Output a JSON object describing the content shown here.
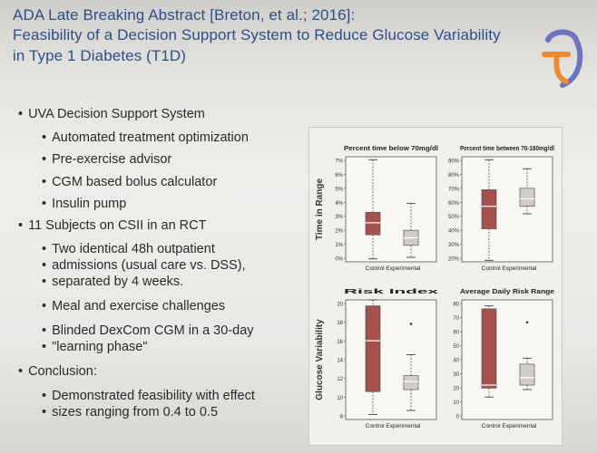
{
  "title": {
    "line1": "ADA Late Breaking Abstract [Breton, et al.; 2016]:",
    "line2": "Feasibility of a Decision Support System to Reduce Glucose Variability",
    "line3": "in Type 1 Diabetes (T1D)"
  },
  "bullets": [
    {
      "level": 1,
      "text": "UVA Decision Support System"
    },
    {
      "level": 2,
      "text": "Automated treatment optimization"
    },
    {
      "level": 2,
      "text": "Pre-exercise advisor"
    },
    {
      "level": 2,
      "text": "CGM based bolus calculator"
    },
    {
      "level": 2,
      "text": "Insulin pump"
    },
    {
      "level": 1,
      "text": "11 Subjects on CSII in an RCT"
    },
    {
      "level": 2,
      "text": "Two identical 48h outpatient"
    },
    {
      "level": 2,
      "text": "admissions (usual care vs. DSS),"
    },
    {
      "level": 2,
      "text": "separated by 4 weeks."
    },
    {
      "level": 2,
      "text": "Meal and exercise challenges"
    },
    {
      "level": 2,
      "text": "Blinded DexCom CGM in a 30-day"
    },
    {
      "level": 2,
      "text": "\"learning phase\""
    },
    {
      "level": 1,
      "text": "Conclusion:"
    },
    {
      "level": 2,
      "text": "Demonstrated feasibility with effect"
    },
    {
      "level": 2,
      "text": "sizes ranging from 0.4 to 0.5"
    }
  ],
  "colors": {
    "title": "#2d4f87",
    "control_box": "#a6524c",
    "experimental_box": "#d2cdc9",
    "logo_orange": "#f08a2e",
    "logo_purple": "#6c74c0"
  },
  "chart_data": [
    {
      "type": "box",
      "title": "Percent time below 70mg/dl",
      "row_label": "Time in Range",
      "categories": [
        "Control",
        "Experimental"
      ],
      "y_ticks": [
        "7%",
        "6%",
        "5%",
        "4%",
        "3%",
        "2%",
        "1%",
        "0%"
      ],
      "ylim": [
        0,
        7
      ],
      "series": [
        {
          "name": "Control",
          "min": 0.2,
          "q1": 1.8,
          "median": 2.6,
          "q3": 3.3,
          "max": 6.8
        },
        {
          "name": "Experimental",
          "min": 0.3,
          "q1": 1.1,
          "median": 1.6,
          "q3": 2.1,
          "max": 3.9
        }
      ]
    },
    {
      "type": "box",
      "title": "Percent time between 70-180mg/dl",
      "row_label": "Time in Range",
      "categories": [
        "Control",
        "Experimental"
      ],
      "y_ticks": [
        "90%",
        "80%",
        "70%",
        "60%",
        "50%",
        "40%",
        "30%",
        "20%"
      ],
      "ylim": [
        20,
        90
      ],
      "series": [
        {
          "name": "Control",
          "min": 21,
          "q1": 42,
          "median": 57,
          "q3": 68,
          "max": 88
        },
        {
          "name": "Experimental",
          "min": 52,
          "q1": 57,
          "median": 62,
          "q3": 69,
          "max": 82
        }
      ]
    },
    {
      "type": "box",
      "title": "Risk Index",
      "row_label": "Glucose Variability",
      "categories": [
        "Control",
        "Experimental"
      ],
      "y_ticks": [
        "20",
        "18",
        "16",
        "14",
        "12",
        "10",
        "8"
      ],
      "ylim": [
        8,
        20
      ],
      "series": [
        {
          "name": "Control",
          "min": 8.5,
          "q1": 10.8,
          "median": 15.9,
          "q3": 19.4,
          "max": 20
        },
        {
          "name": "Experimental",
          "min": 8.9,
          "q1": 11.0,
          "median": 11.8,
          "q3": 12.4,
          "max": 14.5,
          "outliers": [
            17.6
          ]
        }
      ]
    },
    {
      "type": "box",
      "title": "Average Daily Risk Range",
      "row_label": "Glucose Variability",
      "categories": [
        "Control",
        "Experimental"
      ],
      "y_ticks": [
        "80",
        "70",
        "60",
        "50",
        "40",
        "30",
        "20",
        "10",
        "0"
      ],
      "ylim": [
        0,
        80
      ],
      "series": [
        {
          "name": "Control",
          "min": 15,
          "q1": 21,
          "median": 23,
          "q3": 74,
          "max": 76
        },
        {
          "name": "Experimental",
          "min": 20,
          "q1": 23,
          "median": 28,
          "q3": 37,
          "max": 41,
          "outliers": [
            65
          ]
        }
      ]
    }
  ]
}
